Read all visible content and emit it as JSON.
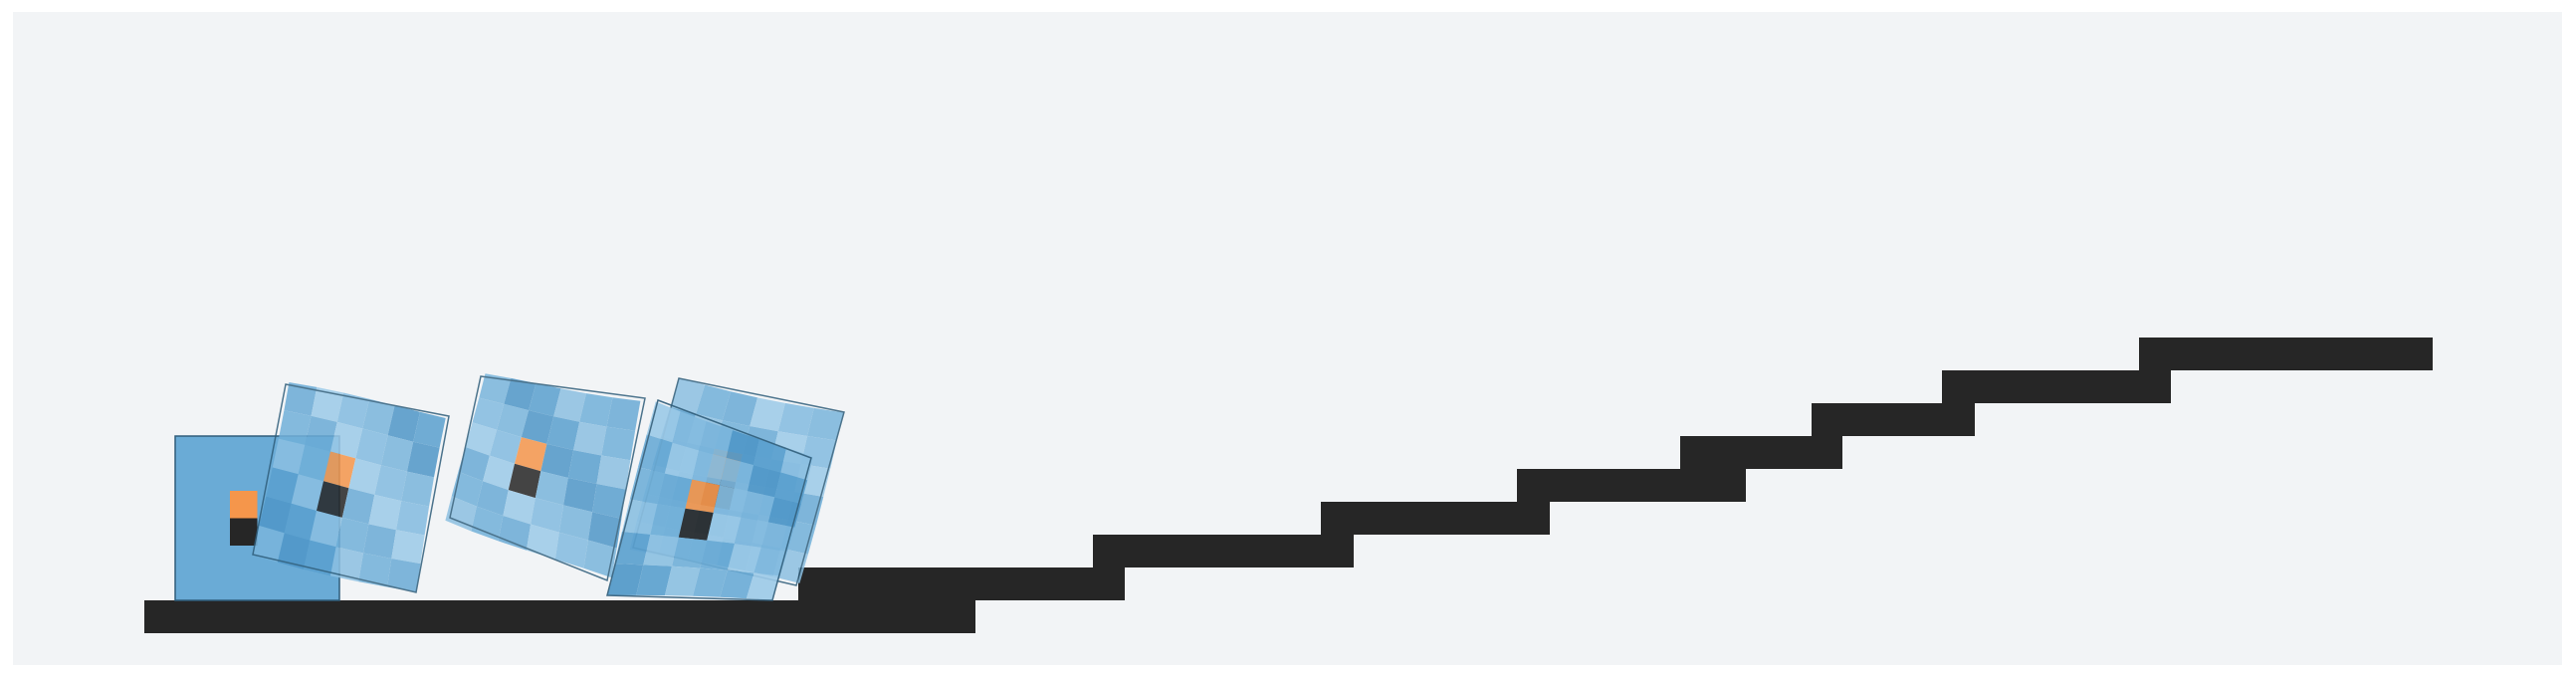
{
  "scene": {
    "colors": {
      "frame": "#ffffff",
      "background": "#f2f4f6",
      "terrain": "#262626",
      "body_fill": "#6aabd6",
      "body_stroke": "#2f5d7a",
      "accent_orange": "#f5964b",
      "accent_dark": "#262626"
    },
    "terrain": "staircase",
    "soft_bodies": [
      {
        "name": "soft-body-initial",
        "pose": "upright",
        "icon": "square-block-icon"
      },
      {
        "name": "soft-body-tumbling-1",
        "pose": "tilted",
        "icon": "deformed-block-icon"
      },
      {
        "name": "soft-body-tumbling-2",
        "pose": "tilted",
        "icon": "deformed-block-icon"
      },
      {
        "name": "soft-body-tumbling-3",
        "pose": "tilted",
        "icon": "deformed-block-icon"
      },
      {
        "name": "soft-body-tumbling-4",
        "pose": "tilted",
        "icon": "deformed-block-icon"
      }
    ]
  }
}
